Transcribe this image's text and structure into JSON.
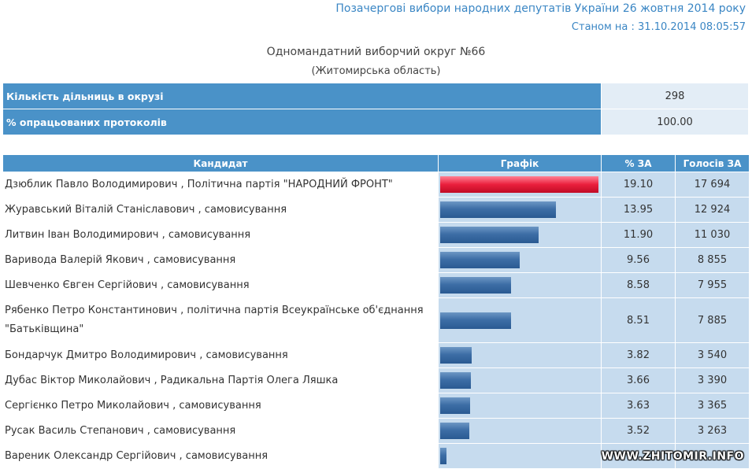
{
  "header": {
    "title": "Позачергові вибори народних депутатів України 26 жовтня 2014 року",
    "status_date": "Станом на : 31.10.2014 08:05:57"
  },
  "district": {
    "name": "Одномандатний виборчий округ №66",
    "region": "(Житомирська область)"
  },
  "summary": [
    {
      "label": "Кількість дільниць в окрузі",
      "value": "298"
    },
    {
      "label": "% опрацьованих протоколів",
      "value": "100.00"
    }
  ],
  "table_headers": {
    "candidate": "Кандидат",
    "graph": "Графік",
    "percent": "% ЗА",
    "votes": "Голосів ЗА"
  },
  "candidates": [
    {
      "name": "Дзюблик Павло Володимирович , Політична партія \"НАРОДНИЙ ФРОНТ\"",
      "percent": "19.10",
      "votes": "17 694",
      "share": 19.1
    },
    {
      "name": "Журавський Віталій Станіславович , самовисування",
      "percent": "13.95",
      "votes": "12 924",
      "share": 13.95
    },
    {
      "name": "Литвин Іван Володимирович , самовисування",
      "percent": "11.90",
      "votes": "11 030",
      "share": 11.9
    },
    {
      "name": "Варивода Валерій Якович , самовисування",
      "percent": "9.56",
      "votes": "8 855",
      "share": 9.56
    },
    {
      "name": "Шевченко Євген Сергійович , самовисування",
      "percent": "8.58",
      "votes": "7 955",
      "share": 8.58
    },
    {
      "name": "Рябенко Петро Константинович , політична партія Всеукраїнське об'єднання \"Батьківщина\"",
      "percent": "8.51",
      "votes": "7 885",
      "share": 8.51
    },
    {
      "name": "Бондарчук Дмитро Володимирович , самовисування",
      "percent": "3.82",
      "votes": "3 540",
      "share": 3.82
    },
    {
      "name": "Дубас Віктор Миколайович , Радикальна Партія Олега Ляшка",
      "percent": "3.66",
      "votes": "3 390",
      "share": 3.66
    },
    {
      "name": "Сергієнко Петро Миколайович , самовисування",
      "percent": "3.63",
      "votes": "3 365",
      "share": 3.63
    },
    {
      "name": "Русак Василь Степанович , самовисування",
      "percent": "3.52",
      "votes": "3 263",
      "share": 3.52
    },
    {
      "name": "Вареник Олександр Сергійович , самовисування",
      "percent": "",
      "votes": "",
      "share": 0.75
    }
  ],
  "watermark": "WWW.ZHITOMIR.INFO"
}
